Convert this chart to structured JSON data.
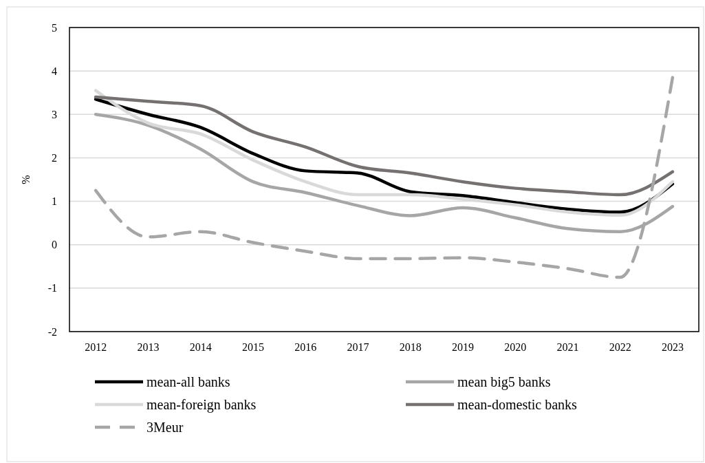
{
  "chart_data": {
    "type": "line",
    "ylabel": "%",
    "categories": [
      "2012",
      "2013",
      "2014",
      "2015",
      "2016",
      "2017",
      "2018",
      "2019",
      "2020",
      "2021",
      "2022",
      "2023"
    ],
    "ylim": [
      -2,
      5
    ],
    "yticks": [
      -2,
      -1,
      0,
      1,
      2,
      3,
      4,
      5
    ],
    "grid": "y",
    "legend": "bottom",
    "marker": "none",
    "series": [
      {
        "name": "mean-all banks",
        "color": "#000000",
        "values": [
          3.35,
          3.0,
          2.7,
          2.1,
          1.7,
          1.65,
          1.22,
          1.13,
          0.97,
          0.82,
          0.75,
          1.4
        ]
      },
      {
        "name": "mean big5 banks",
        "color": "#a6a6a6",
        "values": [
          3.0,
          2.75,
          2.2,
          1.45,
          1.2,
          0.9,
          0.67,
          0.85,
          0.62,
          0.37,
          0.3,
          0.88
        ]
      },
      {
        "name": "mean-foreign banks",
        "color": "#d9d9d9",
        "values": [
          3.55,
          2.8,
          2.55,
          1.95,
          1.45,
          1.15,
          1.15,
          1.05,
          0.92,
          0.75,
          0.68,
          1.45
        ]
      },
      {
        "name": "mean-domestic banks",
        "color": "#767171",
        "values": [
          3.4,
          3.3,
          3.2,
          2.6,
          2.25,
          1.8,
          1.65,
          1.45,
          1.3,
          1.22,
          1.15,
          1.68
        ]
      },
      {
        "name": "3Meur",
        "color": "#a6a6a6",
        "line_style": "dashed",
        "values": [
          1.25,
          0.18,
          0.3,
          0.05,
          -0.15,
          -0.32,
          -0.32,
          -0.3,
          -0.4,
          -0.55,
          -0.75,
          3.85
        ]
      }
    ]
  }
}
